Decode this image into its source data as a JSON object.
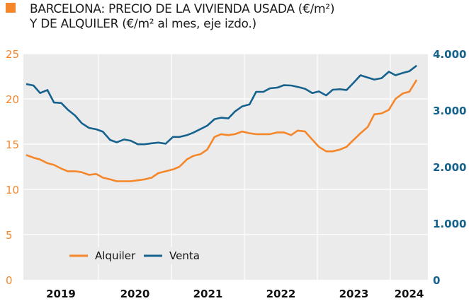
{
  "title_line1": "BARCELONA: PRECIO DE LA VIVIENDA USADA (€/m²)",
  "title_line2": "Y DE ALQUILER (€/m² al mes, eje izdo.)",
  "colors": {
    "title_mark": "#f5862a",
    "alquiler": "#f5862a",
    "venta": "#16628e",
    "plot_bg": "#ebebeb",
    "grid": "#ffffff"
  },
  "chart_data": {
    "type": "line",
    "title": "BARCELONA: PRECIO DE LA VIVIENDA USADA (€/m²) Y DE ALQUILER (€/m² al mes, eje izdo.)",
    "grid": true,
    "legend_placement": "bottom-left",
    "x_ticks": [
      "2019",
      "2020",
      "2021",
      "2022",
      "2023",
      "2024"
    ],
    "xlim": [
      2019,
      2024.52
    ],
    "y_left": {
      "ticks": [
        "0",
        "5",
        "10",
        "15",
        "20",
        "25"
      ],
      "lim": [
        0,
        25
      ]
    },
    "y_right": {
      "ticks": [
        "0",
        "1.000",
        "2.000",
        "3.000",
        "4.000"
      ],
      "lim": [
        0,
        4000
      ]
    },
    "x": [
      2019.01,
      2019.11,
      2019.2,
      2019.3,
      2019.39,
      2019.49,
      2019.58,
      2019.68,
      2019.77,
      2019.87,
      2019.97,
      2020.06,
      2020.16,
      2020.25,
      2020.35,
      2020.44,
      2020.54,
      2020.63,
      2020.73,
      2020.82,
      2020.92,
      2021.02,
      2021.11,
      2021.21,
      2021.3,
      2021.4,
      2021.49,
      2021.59,
      2021.68,
      2021.78,
      2021.87,
      2021.97,
      2022.07,
      2022.16,
      2022.26,
      2022.35,
      2022.45,
      2022.54,
      2022.64,
      2022.73,
      2022.83,
      2022.93,
      2023.02,
      2023.12,
      2023.21,
      2023.31,
      2023.4,
      2023.5,
      2023.59,
      2023.69,
      2023.78,
      2023.88,
      2023.98,
      2024.07,
      2024.17,
      2024.26,
      2024.36
    ],
    "series": [
      {
        "name": "Alquiler",
        "axis": "left",
        "values": [
          13.8,
          13.5,
          13.3,
          12.9,
          12.7,
          12.3,
          12.0,
          12.0,
          11.9,
          11.6,
          11.7,
          11.3,
          11.1,
          10.9,
          10.9,
          10.9,
          11.0,
          11.1,
          11.3,
          11.8,
          12.0,
          12.2,
          12.5,
          13.3,
          13.7,
          13.9,
          14.4,
          15.8,
          16.1,
          16.0,
          16.1,
          16.4,
          16.2,
          16.1,
          16.1,
          16.1,
          16.3,
          16.3,
          16.0,
          16.5,
          16.4,
          15.5,
          14.7,
          14.2,
          14.2,
          14.4,
          14.7,
          15.5,
          16.2,
          16.9,
          18.3,
          18.4,
          18.8,
          20.0,
          20.6,
          20.8,
          22.1
        ]
      },
      {
        "name": "Venta",
        "axis": "right",
        "values": [
          3463,
          3438,
          3304,
          3358,
          3136,
          3128,
          3010,
          2906,
          2771,
          2688,
          2663,
          2620,
          2474,
          2432,
          2482,
          2461,
          2398,
          2398,
          2415,
          2427,
          2407,
          2528,
          2528,
          2557,
          2604,
          2667,
          2726,
          2843,
          2868,
          2855,
          2977,
          3069,
          3103,
          3325,
          3325,
          3388,
          3400,
          3443,
          3438,
          3413,
          3380,
          3304,
          3333,
          3262,
          3363,
          3371,
          3358,
          3493,
          3619,
          3577,
          3543,
          3568,
          3681,
          3619,
          3660,
          3690,
          3790
        ]
      }
    ]
  }
}
